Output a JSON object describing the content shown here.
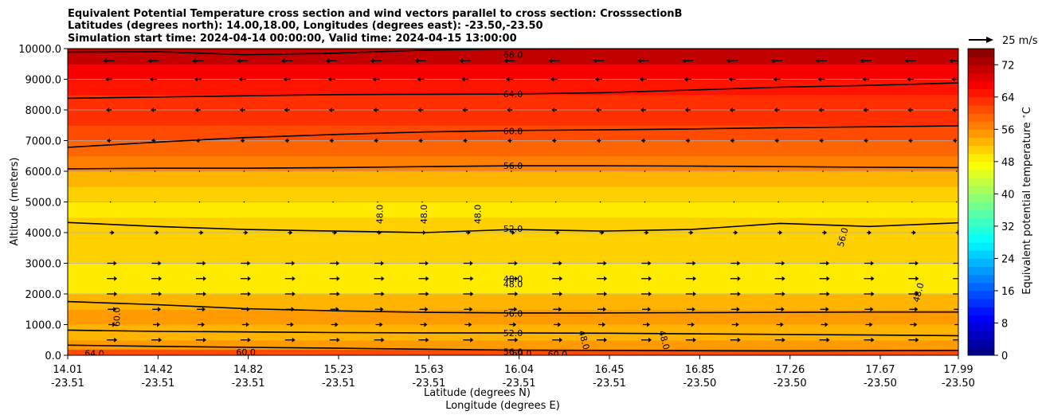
{
  "chart_data": {
    "type": "heatmap",
    "title_lines": [
      "Equivalent Potential Temperature cross section and wind vectors parallel to cross section: CrosssectionB",
      "Latitudes (degrees north): 14.00,18.00, Longitudes (degrees east): -23.50,-23.50",
      "Simulation start time: 2024-04-14 00:00:00, Valid time: 2024-04-15 13:00:00"
    ],
    "xlabel_lines": [
      "Latitude (degrees N)",
      "Longitude (degrees E)"
    ],
    "ylabel": "Altitude (meters)",
    "colorbar_label": "Equivalent potential temperature $^\\circ$C",
    "quiver_key_label": "25 m/s",
    "x_ticks": [
      {
        "lat": "14.01",
        "lon": "-23.51"
      },
      {
        "lat": "14.42",
        "lon": "-23.51"
      },
      {
        "lat": "14.82",
        "lon": "-23.51"
      },
      {
        "lat": "15.23",
        "lon": "-23.51"
      },
      {
        "lat": "15.63",
        "lon": "-23.51"
      },
      {
        "lat": "16.04",
        "lon": "-23.51"
      },
      {
        "lat": "16.45",
        "lon": "-23.51"
      },
      {
        "lat": "16.85",
        "lon": "-23.50"
      },
      {
        "lat": "17.26",
        "lon": "-23.50"
      },
      {
        "lat": "17.67",
        "lon": "-23.50"
      },
      {
        "lat": "17.99",
        "lon": "-23.50"
      }
    ],
    "y_ticks": [
      "0.0",
      "1000.0",
      "2000.0",
      "3000.0",
      "4000.0",
      "5000.0",
      "6000.0",
      "7000.0",
      "8000.0",
      "9000.0",
      "10000.0"
    ],
    "ylim": [
      0,
      10000
    ],
    "colorbar_ticks": [
      "0",
      "8",
      "16",
      "24",
      "32",
      "40",
      "48",
      "56",
      "64",
      "72"
    ],
    "colorbar_range": [
      0,
      76
    ],
    "colormap": "jet",
    "grid": "horizontal",
    "contour_labels": [
      {
        "text": "68.0",
        "x": 0.5,
        "y": 9800
      },
      {
        "text": "64.0",
        "x": 0.5,
        "y": 8520
      },
      {
        "text": "60.0",
        "x": 0.5,
        "y": 7310
      },
      {
        "text": "56.0",
        "x": 0.5,
        "y": 6180
      },
      {
        "text": "52.0",
        "x": 0.5,
        "y": 4130
      },
      {
        "text": "48.0",
        "x": 0.35,
        "y": 4600,
        "rotate": -90
      },
      {
        "text": "48.0",
        "x": 0.4,
        "y": 4600,
        "rotate": -90
      },
      {
        "text": "48.0",
        "x": 0.46,
        "y": 4600,
        "rotate": -90
      },
      {
        "text": "48.0",
        "x": 0.5,
        "y": 2500
      },
      {
        "text": "48.0",
        "x": 0.5,
        "y": 2320
      },
      {
        "text": "56.0",
        "x": 0.5,
        "y": 1370
      },
      {
        "text": "52.0",
        "x": 0.5,
        "y": 730
      },
      {
        "text": "56.0",
        "x": 0.5,
        "y": 120
      },
      {
        "text": "60.0",
        "x": 0.51,
        "y": 60
      },
      {
        "text": "60.0",
        "x": 0.55,
        "y": 40
      },
      {
        "text": "60.0",
        "x": 0.055,
        "y": 1250,
        "rotate": -90
      },
      {
        "text": "64.0",
        "x": 0.03,
        "y": 60
      },
      {
        "text": "60.0",
        "x": 0.2,
        "y": 100
      },
      {
        "text": "56.0",
        "x": 0.87,
        "y": 3850,
        "rotate": -75
      },
      {
        "text": "48.0",
        "x": 0.955,
        "y": 2050,
        "rotate": -75
      },
      {
        "text": "48.0",
        "x": 0.58,
        "y": 500,
        "rotate": 75
      },
      {
        "text": "48.0",
        "x": 0.67,
        "y": 500,
        "rotate": 75
      }
    ],
    "isolines": [
      {
        "label": "68.0",
        "y": [
          9880,
          9900,
          9800,
          9850,
          9950,
          9990,
          9995,
          9996,
          9998,
          9999,
          9999
        ]
      },
      {
        "label": "64.0",
        "y": [
          8380,
          8420,
          8460,
          8500,
          8510,
          8520,
          8560,
          8650,
          8740,
          8800,
          8880
        ]
      },
      {
        "label": "60.0",
        "y": [
          6780,
          6950,
          7100,
          7200,
          7280,
          7330,
          7350,
          7380,
          7420,
          7450,
          7480
        ]
      },
      {
        "label": "56.0",
        "y": [
          6080,
          6100,
          6100,
          6120,
          6150,
          6180,
          6180,
          6170,
          6150,
          6130,
          6120
        ]
      },
      {
        "label": "52.0",
        "y": [
          4330,
          4200,
          4100,
          4050,
          4000,
          4100,
          4050,
          4100,
          4300,
          4200,
          4320
        ]
      },
      {
        "label": "56.0",
        "y": [
          1750,
          1650,
          1520,
          1450,
          1400,
          1380,
          1380,
          1390,
          1400,
          1410,
          1410
        ]
      },
      {
        "label": "52.0",
        "y": [
          820,
          780,
          760,
          740,
          730,
          730,
          720,
          700,
          680,
          660,
          640
        ]
      },
      {
        "label": "56.0",
        "y": [
          330,
          290,
          260,
          230,
          200,
          170,
          160,
          150,
          140,
          150,
          160
        ]
      }
    ],
    "theta_e_profile": {
      "altitude": [
        0,
        200,
        500,
        1000,
        1500,
        2000,
        2500,
        3000,
        3500,
        4000,
        4500,
        5000,
        5500,
        6000,
        6500,
        7000,
        7500,
        8000,
        8500,
        9000,
        9500,
        10000
      ],
      "value": [
        62,
        58,
        50,
        54,
        56,
        50,
        48,
        50,
        51,
        52,
        49,
        49,
        51,
        56,
        58,
        60,
        62,
        63,
        64,
        66,
        69,
        73
      ]
    }
  }
}
